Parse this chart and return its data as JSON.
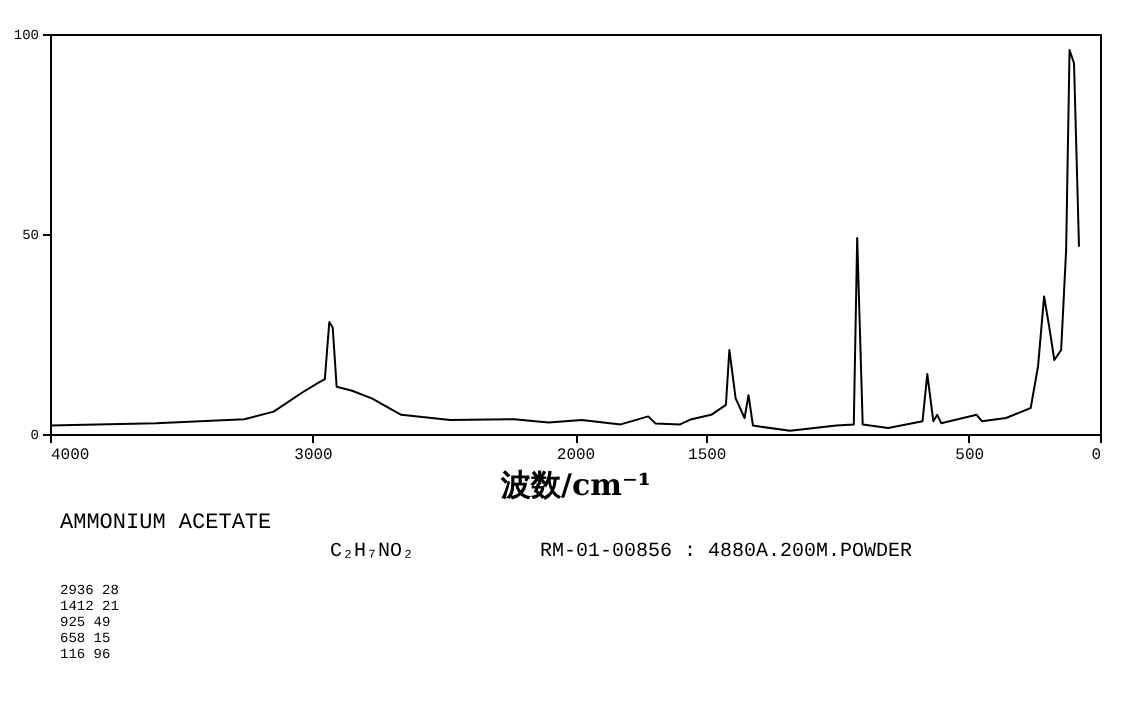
{
  "chart_data": {
    "type": "line",
    "title": "AMMONIUM ACETATE",
    "xlabel": "波数/cm⁻¹",
    "annotations": [
      "C₂H₇NO₂",
      "RM-01-00856 : 4880A.200M.POWDER",
      "2936    28",
      "1412    21",
      " 925    49",
      " 658    15",
      " 116    96"
    ],
    "xlim": [
      4000,
      0
    ],
    "xticks": [
      4000,
      3000,
      2000,
      1500,
      500,
      0
    ],
    "ylim": [
      0,
      100
    ],
    "yticks": [
      0,
      50,
      100
    ],
    "grid": false,
    "series": [
      {
        "color": "#000000",
        "x": [
          4000,
          3596,
          3260,
          3148,
          3036,
          2980,
          2953,
          2936,
          2923,
          2908,
          2849,
          2774,
          2662,
          2475,
          2232,
          2101,
          1974,
          1826,
          1721,
          1693,
          1600,
          1556,
          1481,
          1425,
          1412,
          1388,
          1354,
          1339,
          1322,
          1181,
          1004,
          938,
          925,
          904,
          807,
          676,
          658,
          635,
          620,
          605,
          470,
          450,
          358,
          264,
          236,
          213,
          193,
          174,
          148,
          129,
          116,
          99,
          80
        ],
        "values": [
          2.1,
          2.7,
          3.7,
          5.6,
          10.5,
          12.7,
          13.7,
          28,
          26.6,
          11.8,
          10.8,
          8.9,
          4.8,
          3.5,
          3.7,
          2.9,
          3.5,
          2.4,
          4.4,
          2.6,
          2.4,
          3.7,
          4.8,
          7.3,
          21,
          8.9,
          4,
          9.7,
          2.1,
          0.8,
          2.1,
          2.4,
          49,
          2.4,
          1.5,
          3.2,
          15,
          3.2,
          4.8,
          2.7,
          4.8,
          3.2,
          4,
          6.5,
          16.9,
          34.4,
          26.6,
          18.5,
          21,
          46,
          96,
          92.7,
          46.8
        ]
      }
    ]
  }
}
